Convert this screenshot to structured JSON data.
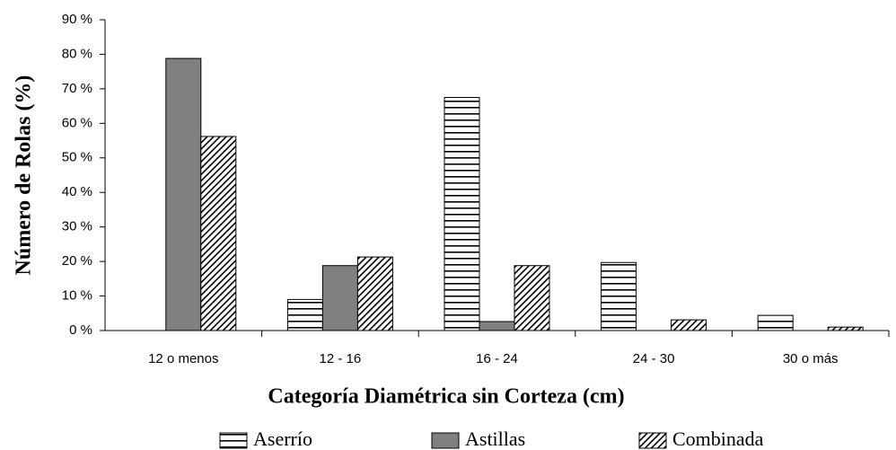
{
  "chart_data": {
    "type": "bar",
    "x_label": "Categoría Diamétrica sin Corteza (cm)",
    "y_label": "Número de Rolas (%)",
    "categories": [
      "12 o menos",
      "12 - 16",
      "16 - 24",
      "24 - 30",
      "30 o más"
    ],
    "series": [
      {
        "name": "Aserrío",
        "color": "#000000",
        "pattern": "horizontal",
        "values": [
          0,
          9,
          67.5,
          19.7,
          4.4
        ]
      },
      {
        "name": "Astillas",
        "color": "#808080",
        "pattern": "solid",
        "values": [
          78.8,
          18.8,
          2.6,
          0,
          0
        ]
      },
      {
        "name": "Combinada",
        "color": "#000000",
        "pattern": "diagonal",
        "values": [
          56.2,
          21.3,
          18.8,
          3.1,
          1.0
        ]
      }
    ],
    "ylim": [
      0,
      90
    ],
    "yticks": [
      {
        "value": 0,
        "label": "0 %"
      },
      {
        "value": 10,
        "label": "10 %"
      },
      {
        "value": 20,
        "label": "20 %"
      },
      {
        "value": 30,
        "label": "30 %"
      },
      {
        "value": 40,
        "label": "40 %"
      },
      {
        "value": 50,
        "label": "50 %"
      },
      {
        "value": 60,
        "label": "60 %"
      },
      {
        "value": 70,
        "label": "70 %"
      },
      {
        "value": 80,
        "label": "80 %"
      },
      {
        "value": 90,
        "label": "90 %"
      }
    ],
    "grid": false,
    "legend": "bottom"
  }
}
